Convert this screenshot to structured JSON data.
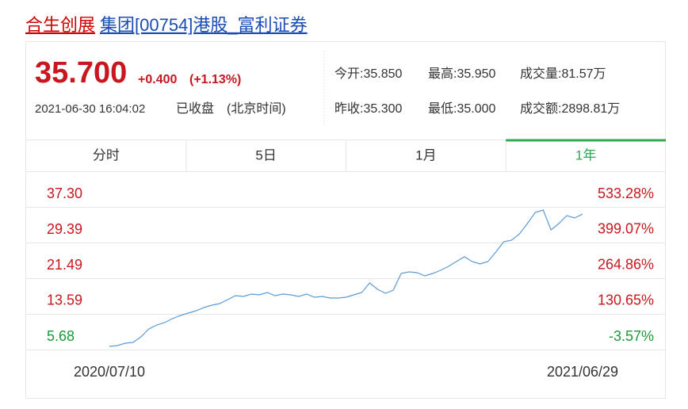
{
  "header": {
    "title_part1": "合生创展",
    "title_part2": "集团[00754]港股_富利证券"
  },
  "quote": {
    "price": "35.700",
    "change": "+0.400",
    "change_pct": "(+1.13%)",
    "time": "2021-06-30 16:04:02",
    "status": "已收盘",
    "timezone": "(北京时间)",
    "stats": [
      [
        "今开:35.850",
        "最高:35.950",
        "成交量:81.57万"
      ],
      [
        "昨收:35.300",
        "最低:35.000",
        "成交额:2898.81万"
      ]
    ]
  },
  "tabs": [
    "分时",
    "5日",
    "1月",
    "1年"
  ],
  "active_tab": 3,
  "chart_data": {
    "type": "line",
    "categories": [
      "2020/07/10",
      null,
      null,
      null,
      null,
      null,
      null,
      null,
      null,
      null,
      null,
      null,
      null,
      null,
      null,
      null,
      null,
      null,
      null,
      null,
      null,
      null,
      null,
      null,
      null,
      null,
      null,
      null,
      null,
      null,
      null,
      null,
      null,
      null,
      null,
      null,
      null,
      null,
      null,
      null,
      null,
      null,
      null,
      null,
      null,
      null,
      null,
      null,
      null,
      null,
      null,
      null,
      null,
      null,
      null,
      null,
      null,
      null,
      null,
      null,
      "2021/06/29"
    ],
    "series": [
      {
        "name": "1年",
        "color": "#5b9bd5",
        "values": [
          6.38,
          6.56,
          7.09,
          7.26,
          8.49,
          10.25,
          11.13,
          11.65,
          12.53,
          13.23,
          13.76,
          14.29,
          14.99,
          15.52,
          15.87,
          16.75,
          17.63,
          17.45,
          17.98,
          17.8,
          18.33,
          17.63,
          17.98,
          17.8,
          17.45,
          17.98,
          17.27,
          17.45,
          17.1,
          17.1,
          17.27,
          17.8,
          18.33,
          20.44,
          19.03,
          18.15,
          18.86,
          22.54,
          22.9,
          22.72,
          22.02,
          22.54,
          23.25,
          24.12,
          25.18,
          26.23,
          25.18,
          24.65,
          25.18,
          27.29,
          29.57,
          29.92,
          31.33,
          33.61,
          36.07,
          36.6,
          32.21,
          33.61,
          35.37,
          34.84,
          35.7
        ]
      }
    ],
    "ylim": [
      5.68,
      37.3
    ],
    "yticks": [
      {
        "value": 37.3,
        "label": "37.30"
      },
      {
        "value": 29.39,
        "label": "29.39"
      },
      {
        "value": 21.49,
        "label": "21.49"
      },
      {
        "value": 13.59,
        "label": "13.59"
      },
      {
        "value": 5.68,
        "label": "5.68"
      }
    ],
    "y2lim": [
      -3.57,
      533.28
    ],
    "y2ticks": [
      {
        "value": 533.28,
        "label": "533.28%"
      },
      {
        "value": 399.07,
        "label": "399.07%"
      },
      {
        "value": 264.86,
        "label": "264.86%"
      },
      {
        "value": 130.65,
        "label": "130.65%"
      },
      {
        "value": -3.57,
        "label": "-3.57%"
      }
    ],
    "grid": true
  }
}
